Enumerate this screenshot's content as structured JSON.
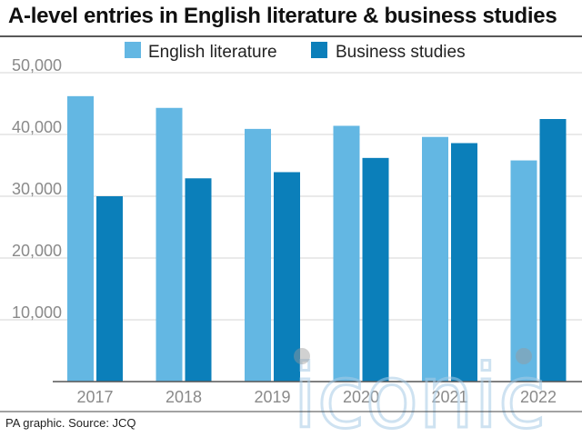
{
  "header": {
    "title": "A-level entries in English literature & business studies"
  },
  "footer": {
    "source": "PA graphic. Source: JCQ"
  },
  "watermark": {
    "text": "iconic"
  },
  "colors": {
    "english_literature": "#63b7e3",
    "business_studies": "#0b7fba",
    "gridline": "#d4d4d4",
    "axis": "#555555",
    "tick_label": "#8a8a8a"
  },
  "chart_data": {
    "type": "bar",
    "title": "A-level entries in English literature & business studies",
    "xlabel": "",
    "ylabel": "",
    "categories": [
      "2017",
      "2018",
      "2019",
      "2020",
      "2021",
      "2022"
    ],
    "series": [
      {
        "name": "English literature",
        "color": "#63b7e3",
        "values": [
          46200,
          44300,
          40900,
          41400,
          39600,
          35800
        ]
      },
      {
        "name": "Business studies",
        "color": "#0b7fba",
        "values": [
          30000,
          32900,
          33900,
          36200,
          38600,
          42500
        ]
      }
    ],
    "ylim": [
      0,
      50000
    ],
    "yticks": [
      10000,
      20000,
      30000,
      40000,
      50000
    ],
    "ytick_labels": [
      "10,000",
      "20,000",
      "30,000",
      "40,000",
      "50,000"
    ],
    "grid": true,
    "legend_position": "top"
  }
}
